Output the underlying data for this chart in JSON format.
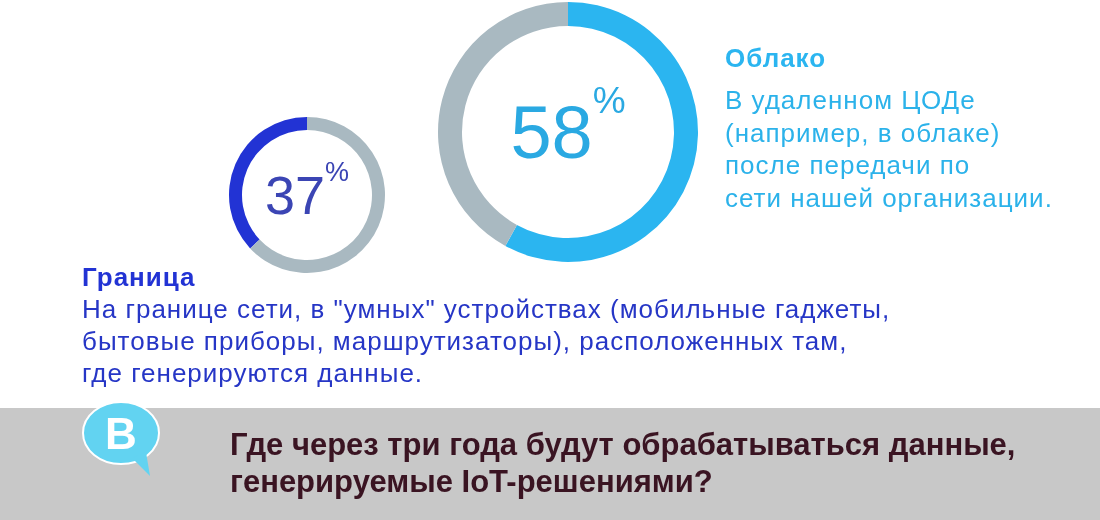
{
  "chart_data": [
    {
      "type": "donut",
      "title": "Граница",
      "subtitle": "На границе сети, в \"умных\" устройствах (мобильные гаджеты,\nбытовые приборы, маршрутизаторы), расположенных там,\nгде генерируются данные.",
      "categories": [
        null,
        null
      ],
      "values": [
        37,
        63
      ],
      "colors": [
        "#2233d4",
        "#a9b9c1"
      ],
      "value_labels": [
        "37$^{%}$",
        null
      ]
    },
    {
      "type": "donut",
      "title": "Облако",
      "subtitle": "В удаленном ЦОДе\n(например, в облаке)\nпосле передачи по\nсети нашей организации.",
      "categories": [
        null,
        null
      ],
      "values": [
        58,
        42
      ],
      "colors": [
        "#2bb5f0",
        "#a9b9c1"
      ],
      "value_labels": [
        "58$^{%}$",
        null
      ]
    },
    {
      "type": "other",
      "title": "Где через три года будут обрабатываться данные,\nгенерируемые IoT-решениями?",
      "annotations": [
        "B"
      ]
    }
  ]
}
